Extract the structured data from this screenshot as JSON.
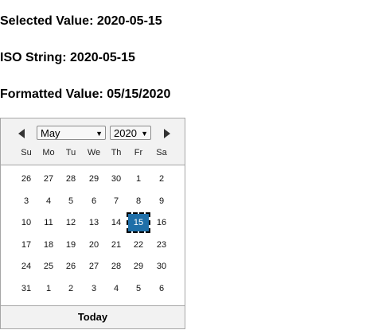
{
  "info": {
    "selected_label": "Selected Value:",
    "selected_value": "2020-05-15",
    "iso_label": "ISO String:",
    "iso_value": "2020-05-15",
    "formatted_label": "Formatted Value:",
    "formatted_value": "05/15/2020"
  },
  "calendar": {
    "month": "May",
    "year": "2020",
    "weekdays": [
      "Su",
      "Mo",
      "Tu",
      "We",
      "Th",
      "Fr",
      "Sa"
    ],
    "weeks": [
      [
        "26",
        "27",
        "28",
        "29",
        "30",
        "1",
        "2"
      ],
      [
        "3",
        "4",
        "5",
        "6",
        "7",
        "8",
        "9"
      ],
      [
        "10",
        "11",
        "12",
        "13",
        "14",
        "15",
        "16"
      ],
      [
        "17",
        "18",
        "19",
        "20",
        "21",
        "22",
        "23"
      ],
      [
        "24",
        "25",
        "26",
        "27",
        "28",
        "29",
        "30"
      ],
      [
        "31",
        "1",
        "2",
        "3",
        "4",
        "5",
        "6"
      ]
    ],
    "selected_day": "15",
    "today_label": "Today",
    "accent_color": "#1f6fa8",
    "icons": {
      "prev": "left-arrow-icon",
      "next": "right-arrow-icon"
    }
  }
}
